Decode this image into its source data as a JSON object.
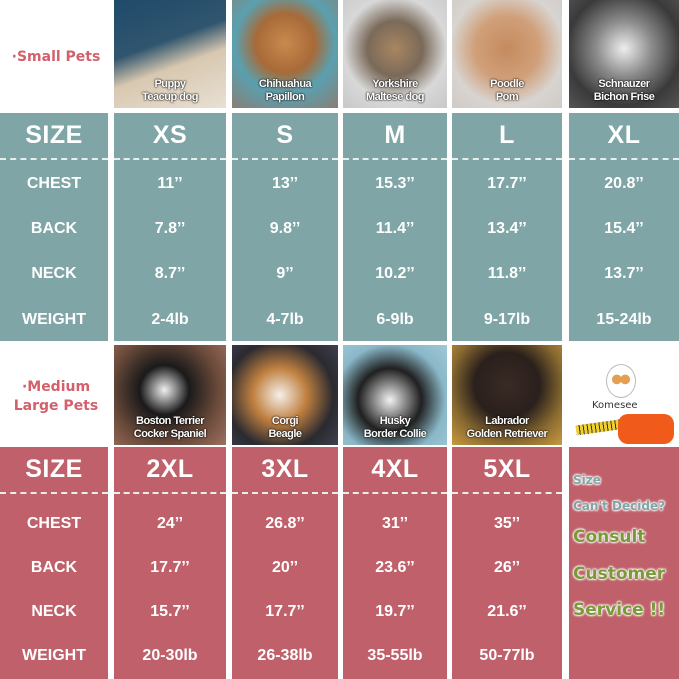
{
  "small": {
    "section_label": "·Small Pets",
    "photos": [
      {
        "line1": "Puppy",
        "line2": "Teacup dog",
        "bg": "linear-gradient(160deg,#1f4a6a 0%,#30556e 40%,#d8c8b0 60%,#e8e0d4 100%)"
      },
      {
        "line1": "Chihuahua",
        "line2": "Papillon",
        "bg": "radial-gradient(circle at 50% 40%,#c98a4e 0%,#a86a38 35%,#5aa0b0 60%,#8a7e74 100%)"
      },
      {
        "line1": "Yorkshire",
        "line2": "Maltese dog",
        "bg": "radial-gradient(circle at 50% 45%,#a88660 0%,#7a6a5a 35%,#d8d8d8 65%,#c8c8c8 100%)"
      },
      {
        "line1": "Poodle",
        "line2": "Pom",
        "bg": "radial-gradient(circle at 50% 45%,#c58a5e 0%,#d0a07a 40%,#d8d4d0 70%,#cfcac5 100%)"
      },
      {
        "line1": "Schnauzer",
        "line2": "Bichon Frise",
        "bg": "radial-gradient(circle at 50% 45%,#eeeeee 0%,#8a8a8a 35%,#3a3a3a 70%,#555 100%)"
      }
    ],
    "header": {
      "label": "SIZE",
      "sizes": [
        "XS",
        "S",
        "M",
        "L",
        "XL"
      ]
    },
    "rows": [
      {
        "label": "CHEST",
        "values": [
          "11’’",
          "13’’",
          "15.3’’",
          "17.7’’",
          "20.8’’"
        ]
      },
      {
        "label": "BACK",
        "values": [
          "7.8’’",
          "9.8’’",
          "11.4’’",
          "13.4’’",
          "15.4’’"
        ]
      },
      {
        "label": "NECK",
        "values": [
          "8.7’’",
          "9’’",
          "10.2’’",
          "11.8’’",
          "13.7’’"
        ]
      },
      {
        "label": "WEIGHT",
        "values": [
          "2-4lb",
          "4-7lb",
          "6-9lb",
          "9-17lb",
          "15-24lb"
        ]
      }
    ]
  },
  "large": {
    "section_label_1": "·Medium",
    "section_label_2": "Large Pets",
    "photos": [
      {
        "line1": "Boston Terrier",
        "line2": "Cocker Spaniel",
        "bg": "radial-gradient(circle at 45% 45%,#f0f0f0 0%,#1a1a1a 30%,#6a4a3a 65%,#a07060 100%)"
      },
      {
        "line1": "Corgi",
        "line2": "Beagle",
        "bg": "radial-gradient(circle at 45% 50%,#f5f0ea 0%,#c08040 35%,#2a2a30 70%,#404050 100%)"
      },
      {
        "line1": "Husky",
        "line2": "Border Collie",
        "bg": "radial-gradient(circle at 45% 55%,#f2f2f2 0%,#202020 40%,#8ab8c8 70%,#a0c8d8 100%)"
      },
      {
        "line1": "Labrador",
        "line2": "Golden Retriever",
        "bg": "radial-gradient(circle at 50% 40%,#3a2a25 0%,#2a201c 40%,#8a6a30 70%,#c89a40 100%)"
      }
    ],
    "logo_text": "Komesee",
    "header": {
      "label": "SIZE",
      "sizes": [
        "2XL",
        "3XL",
        "4XL",
        "5XL"
      ]
    },
    "rows": [
      {
        "label": "CHEST",
        "values": [
          "24’’",
          "26.8’’",
          "31’’",
          "35’’"
        ]
      },
      {
        "label": "BACK",
        "values": [
          "17.7’’",
          "20’’",
          "23.6’’",
          "26’’"
        ]
      },
      {
        "label": "NECK",
        "values": [
          "15.7’’",
          "17.7’’",
          "19.7’’",
          "21.6’’"
        ]
      },
      {
        "label": "WEIGHT",
        "values": [
          "20-30lb",
          "26-38lb",
          "35-55lb",
          "50-77lb"
        ]
      }
    ],
    "help": {
      "line1": "Size",
      "line2": "Can't Decide?",
      "line3": "Consult",
      "line4": "Customer",
      "line5": "Service !!"
    }
  },
  "colors": {
    "teal": "#7fa5a6",
    "pink": "#c0606a",
    "label": "#d2616c",
    "help_blue": "#7fa5a6",
    "help_green": "#7a9a3a"
  }
}
